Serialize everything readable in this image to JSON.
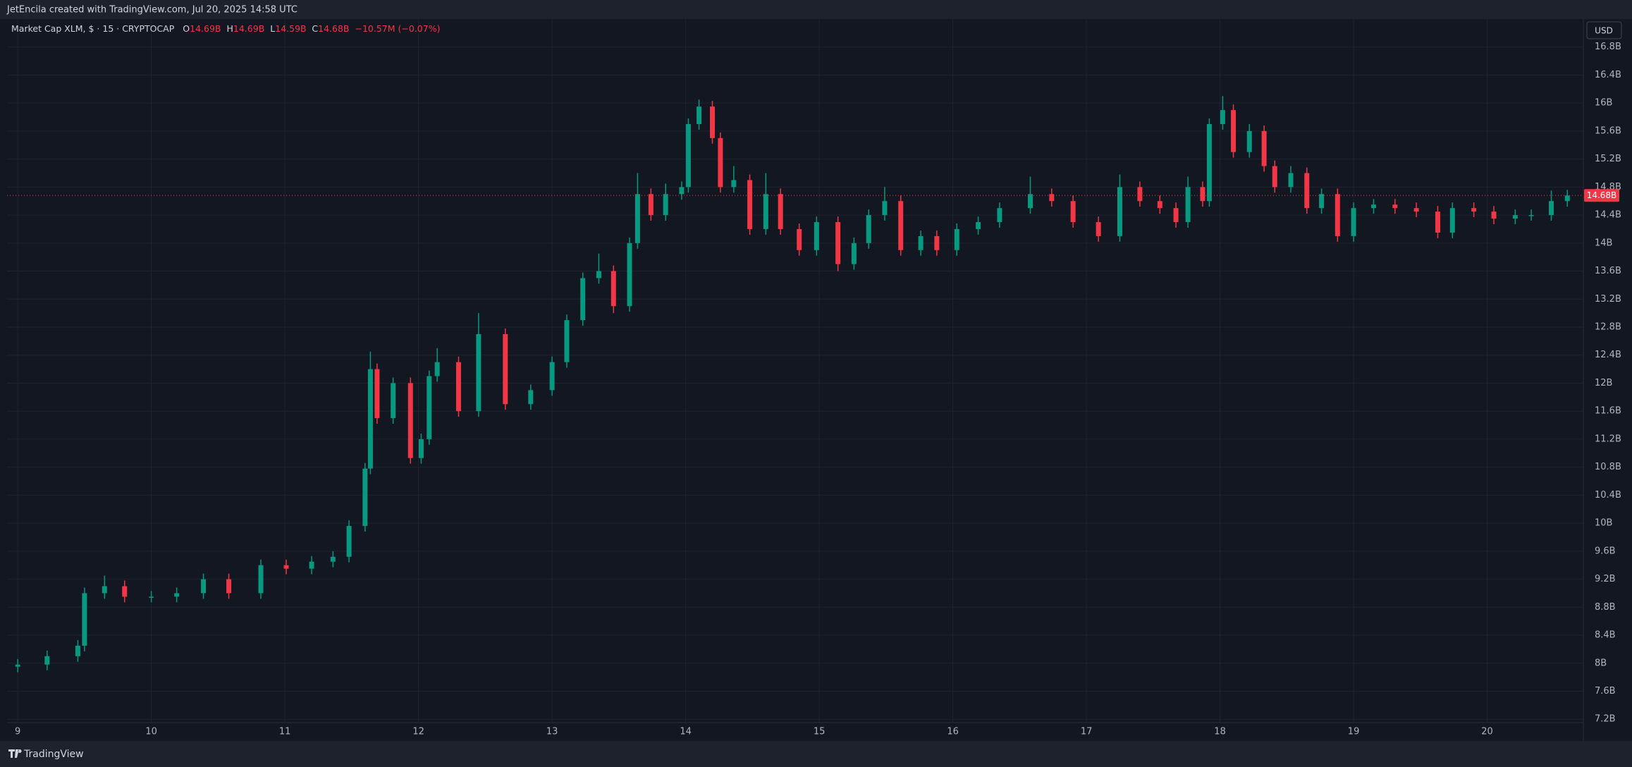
{
  "chart_data": {
    "type": "candlestick",
    "caption": "JetEncila created with TradingView.com, Jul 20, 2025 14:58 UTC",
    "title": "Market Cap XLM, $ · 15 · CRYPTOCAP",
    "ohlc_legend": [
      {
        "key": "O",
        "text": "14.69B"
      },
      {
        "key": "H",
        "text": "14.69B"
      },
      {
        "key": "L",
        "text": "14.59B"
      },
      {
        "key": "C",
        "text": "14.68B"
      }
    ],
    "change": "−10.57M (−0.07%)",
    "currency": "USD",
    "brand": "TradingView",
    "last_price": {
      "value": 14.68,
      "label": "14.68B"
    },
    "up_color": "#089981",
    "down_color": "#f23645",
    "grid": true,
    "xlim": [
      8.92,
      20.72
    ],
    "xticks": [
      9,
      10,
      11,
      12,
      13,
      14,
      15,
      16,
      17,
      18,
      19,
      20
    ],
    "ylim": [
      6.89,
      17.2
    ],
    "yticks": [
      {
        "value": 7.2,
        "label": "7.2B"
      },
      {
        "value": 7.6,
        "label": "7.6B"
      },
      {
        "value": 8,
        "label": "8B"
      },
      {
        "value": 8.4,
        "label": "8.4B"
      },
      {
        "value": 8.8,
        "label": "8.8B"
      },
      {
        "value": 9.2,
        "label": "9.2B"
      },
      {
        "value": 9.6,
        "label": "9.6B"
      },
      {
        "value": 10,
        "label": "10B"
      },
      {
        "value": 10.4,
        "label": "10.4B"
      },
      {
        "value": 10.8,
        "label": "10.8B"
      },
      {
        "value": 11.2,
        "label": "11.2B"
      },
      {
        "value": 11.6,
        "label": "11.6B"
      },
      {
        "value": 12,
        "label": "12B"
      },
      {
        "value": 12.4,
        "label": "12.4B"
      },
      {
        "value": 12.8,
        "label": "12.8B"
      },
      {
        "value": 13.2,
        "label": "13.2B"
      },
      {
        "value": 13.6,
        "label": "13.6B"
      },
      {
        "value": 14,
        "label": "14B"
      },
      {
        "value": 14.4,
        "label": "14.4B"
      },
      {
        "value": 14.8,
        "label": "14.8B"
      },
      {
        "value": 15.2,
        "label": "15.2B"
      },
      {
        "value": 15.6,
        "label": "15.6B"
      },
      {
        "value": 16,
        "label": "16B"
      },
      {
        "value": 16.4,
        "label": "16.4B"
      },
      {
        "value": 16.8,
        "label": "16.8B"
      }
    ],
    "x": [
      9.0,
      9.22,
      9.45,
      9.5,
      9.65,
      9.8,
      10.0,
      10.19,
      10.39,
      10.58,
      10.82,
      11.01,
      11.2,
      11.36,
      11.48,
      11.6,
      11.64,
      11.69,
      11.81,
      11.94,
      12.02,
      12.08,
      12.14,
      12.3,
      12.45,
      12.65,
      12.84,
      13.0,
      13.11,
      13.23,
      13.35,
      13.46,
      13.58,
      13.64,
      13.74,
      13.85,
      13.97,
      14.02,
      14.1,
      14.2,
      14.26,
      14.36,
      14.48,
      14.6,
      14.71,
      14.85,
      14.98,
      15.14,
      15.26,
      15.37,
      15.49,
      15.61,
      15.76,
      15.88,
      16.03,
      16.19,
      16.35,
      16.58,
      16.74,
      16.9,
      17.09,
      17.25,
      17.4,
      17.55,
      17.67,
      17.76,
      17.87,
      17.92,
      18.02,
      18.1,
      18.22,
      18.33,
      18.41,
      18.53,
      18.65,
      18.76,
      18.88,
      19.0,
      19.15,
      19.31,
      19.47,
      19.63,
      19.74,
      19.9,
      20.05,
      20.21,
      20.33,
      20.48,
      20.6
    ],
    "open": [
      7.95,
      7.98,
      8.1,
      8.25,
      9.0,
      9.1,
      8.95,
      8.95,
      9.0,
      9.2,
      9.0,
      9.4,
      9.35,
      9.45,
      9.52,
      9.96,
      10.78,
      12.2,
      11.5,
      12.0,
      10.93,
      11.2,
      12.1,
      12.3,
      11.6,
      12.7,
      11.7,
      11.9,
      12.3,
      12.9,
      13.5,
      13.6,
      13.1,
      14.0,
      14.7,
      14.4,
      14.7,
      14.8,
      15.7,
      15.95,
      15.5,
      14.8,
      14.9,
      14.2,
      14.7,
      14.2,
      13.9,
      14.3,
      13.7,
      14.0,
      14.4,
      14.6,
      13.9,
      14.1,
      13.9,
      14.2,
      14.3,
      14.5,
      14.7,
      14.6,
      14.3,
      14.1,
      14.8,
      14.6,
      14.5,
      14.3,
      14.8,
      14.6,
      15.7,
      15.9,
      15.3,
      15.6,
      15.1,
      14.8,
      15.0,
      14.5,
      14.7,
      14.1,
      14.5,
      14.55,
      14.5,
      14.45,
      14.15,
      14.5,
      14.45,
      14.35,
      14.4,
      14.4,
      14.6
    ],
    "high": [
      8.06,
      8.18,
      8.33,
      9.08,
      9.25,
      9.18,
      9.03,
      9.08,
      9.28,
      9.28,
      9.48,
      9.48,
      9.53,
      9.6,
      10.04,
      10.86,
      12.45,
      12.28,
      12.08,
      12.08,
      11.28,
      12.18,
      12.5,
      12.38,
      13.0,
      12.78,
      11.98,
      12.38,
      12.98,
      13.58,
      13.85,
      13.68,
      14.08,
      15.0,
      14.78,
      14.85,
      14.88,
      15.78,
      16.05,
      16.03,
      15.58,
      15.1,
      14.98,
      15.0,
      14.78,
      14.28,
      14.38,
      14.38,
      14.08,
      14.48,
      14.8,
      14.68,
      14.18,
      14.18,
      14.28,
      14.38,
      14.58,
      14.95,
      14.78,
      14.68,
      14.38,
      14.98,
      14.88,
      14.68,
      14.58,
      14.95,
      14.88,
      15.78,
      16.1,
      15.98,
      15.7,
      15.68,
      15.18,
      15.1,
      15.08,
      14.78,
      14.78,
      14.58,
      14.63,
      14.63,
      14.58,
      14.53,
      14.58,
      14.58,
      14.53,
      14.48,
      14.48,
      14.75,
      14.76
    ],
    "low": [
      7.87,
      7.9,
      8.02,
      8.17,
      8.92,
      8.87,
      8.87,
      8.87,
      8.92,
      8.92,
      8.92,
      9.27,
      9.27,
      9.37,
      9.44,
      9.88,
      10.7,
      11.42,
      11.42,
      10.85,
      10.85,
      11.12,
      12.02,
      11.52,
      11.52,
      11.62,
      11.62,
      11.82,
      12.22,
      12.82,
      13.42,
      13.0,
      13.02,
      13.92,
      14.32,
      14.32,
      14.62,
      14.72,
      15.62,
      15.42,
      14.72,
      14.72,
      14.12,
      14.12,
      14.12,
      13.82,
      13.82,
      13.6,
      13.62,
      13.92,
      14.32,
      13.82,
      13.82,
      13.82,
      13.82,
      14.12,
      14.22,
      14.42,
      14.52,
      14.22,
      14.02,
      14.02,
      14.52,
      14.42,
      14.22,
      14.22,
      14.52,
      14.52,
      15.62,
      15.22,
      15.22,
      15.02,
      14.72,
      14.72,
      14.42,
      14.42,
      14.02,
      14.02,
      14.42,
      14.42,
      14.37,
      14.07,
      14.07,
      14.37,
      14.27,
      14.27,
      14.32,
      14.32,
      14.52
    ],
    "close": [
      7.98,
      8.1,
      8.25,
      9.0,
      9.1,
      8.95,
      8.95,
      9.0,
      9.2,
      9.0,
      9.4,
      9.35,
      9.45,
      9.52,
      9.96,
      10.78,
      12.2,
      11.5,
      12.0,
      10.93,
      11.2,
      12.1,
      12.3,
      11.6,
      12.7,
      11.7,
      11.9,
      12.3,
      12.9,
      13.5,
      13.6,
      13.1,
      14.0,
      14.7,
      14.4,
      14.7,
      14.8,
      15.7,
      15.95,
      15.5,
      14.8,
      14.9,
      14.2,
      14.7,
      14.2,
      13.9,
      14.3,
      13.7,
      14.0,
      14.4,
      14.6,
      13.9,
      14.1,
      13.9,
      14.2,
      14.3,
      14.5,
      14.7,
      14.6,
      14.3,
      14.1,
      14.8,
      14.6,
      14.5,
      14.3,
      14.8,
      14.6,
      15.7,
      15.9,
      15.3,
      15.6,
      15.1,
      14.8,
      15.0,
      14.5,
      14.7,
      14.1,
      14.5,
      14.55,
      14.5,
      14.45,
      14.15,
      14.5,
      14.45,
      14.35,
      14.4,
      14.4,
      14.6,
      14.68
    ]
  }
}
